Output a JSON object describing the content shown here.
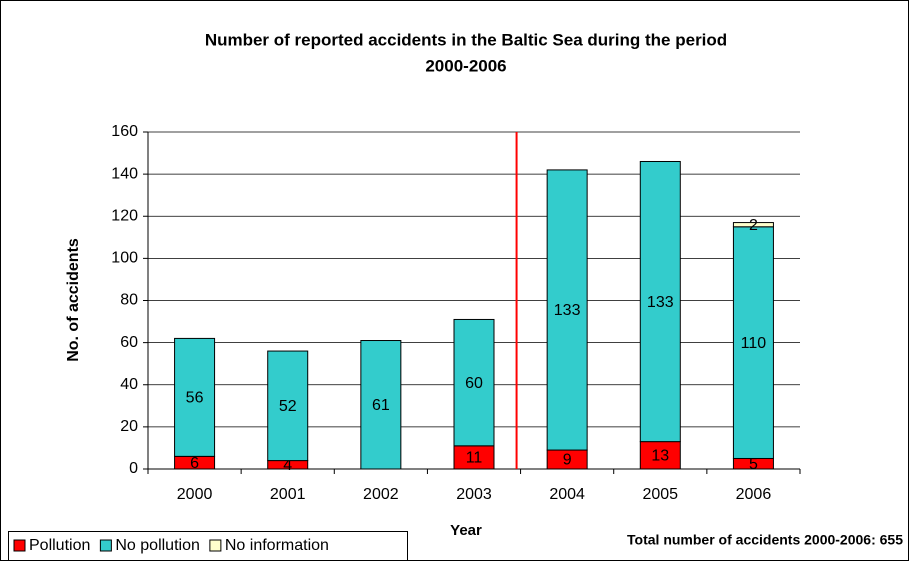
{
  "chart_data": {
    "type": "stacked_bar",
    "title": [
      "Number of reported accidents in the Baltic Sea during the period",
      "2000-2006"
    ],
    "x_label": "Year",
    "y_label": "No. of accidents",
    "annotation": "Total number of accidents 2000-2006: 655",
    "categories": [
      "2000",
      "2001",
      "2002",
      "2003",
      "2004",
      "2005",
      "2006"
    ],
    "series": [
      {
        "name": "Pollution",
        "color": "#ff0000",
        "values": [
          6,
          4,
          null,
          11,
          9,
          13,
          5
        ]
      },
      {
        "name": "No pollution",
        "color": "#33cccc",
        "values": [
          56,
          52,
          61,
          60,
          133,
          133,
          110
        ]
      },
      {
        "name": "No information",
        "color": "#ffffcc",
        "values": [
          null,
          null,
          null,
          null,
          null,
          null,
          2
        ]
      }
    ],
    "ylim": [
      0,
      160
    ],
    "yticks": [
      0,
      20,
      40,
      60,
      80,
      100,
      120,
      140,
      160
    ],
    "grid": true,
    "legend": "bottom-left"
  }
}
